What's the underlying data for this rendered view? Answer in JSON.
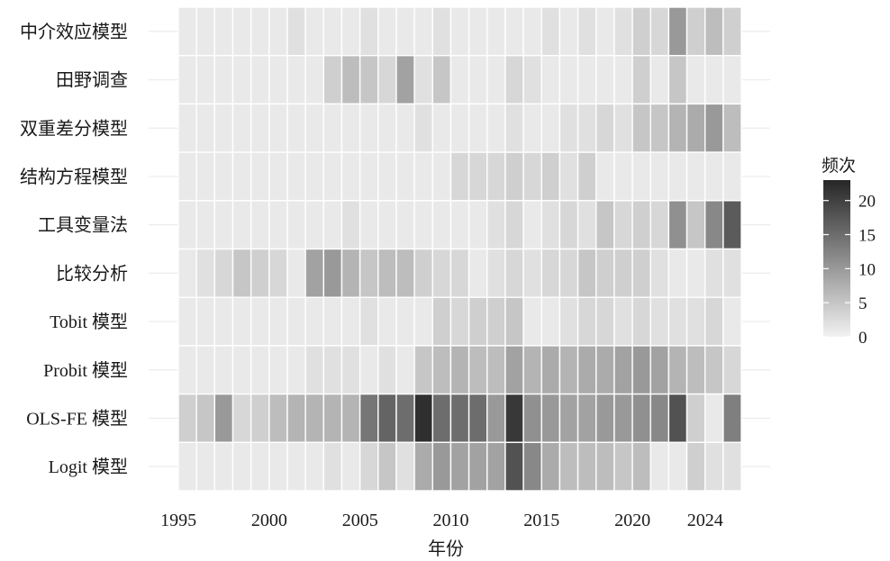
{
  "chart_data": {
    "type": "heatmap",
    "title": "",
    "xlabel": "年份",
    "ylabel": "",
    "legend_title": "频次",
    "legend_position": "right",
    "legend_ticks": [
      0,
      5,
      10,
      15,
      20
    ],
    "value_range": [
      0,
      23
    ],
    "color_low": "#f2f2f2",
    "color_high": "#262626",
    "x": [
      1995,
      1996,
      1997,
      1998,
      1999,
      2000,
      2001,
      2002,
      2003,
      2004,
      2005,
      2006,
      2007,
      2008,
      2009,
      2010,
      2011,
      2012,
      2013,
      2014,
      2015,
      2016,
      2017,
      2018,
      2019,
      2020,
      2021,
      2022,
      2023,
      2024,
      2025
    ],
    "x_tick_labels": [
      "1995",
      "2000",
      "2005",
      "2010",
      "2015",
      "2020",
      "2024"
    ],
    "x_tick_values": [
      1995,
      2000,
      2005,
      2010,
      2015,
      2020,
      2024
    ],
    "grid": true,
    "series": [
      {
        "name": "中介效应模型",
        "values": [
          1,
          1,
          1,
          1,
          1,
          1,
          2,
          1,
          1,
          1,
          2,
          1,
          1,
          1,
          2,
          1,
          1,
          1,
          1,
          1,
          2,
          1,
          2,
          1,
          2,
          4,
          3,
          10,
          4,
          6,
          4
        ]
      },
      {
        "name": "田野调查",
        "values": [
          1,
          1,
          1,
          1,
          1,
          1,
          1,
          1,
          4,
          6,
          5,
          3,
          9,
          2,
          5,
          1,
          1,
          1,
          3,
          2,
          1,
          1,
          1,
          1,
          1,
          4,
          1,
          5,
          1,
          1,
          1
        ]
      },
      {
        "name": "双重差分模型",
        "values": [
          1,
          1,
          1,
          1,
          1,
          1,
          1,
          1,
          1,
          1,
          1,
          1,
          1,
          2,
          1,
          1,
          1,
          1,
          2,
          1,
          1,
          2,
          2,
          3,
          2,
          5,
          5,
          7,
          8,
          10,
          6
        ]
      },
      {
        "name": "结构方程模型",
        "values": [
          1,
          1,
          1,
          1,
          1,
          1,
          1,
          1,
          1,
          1,
          1,
          1,
          1,
          1,
          1,
          3,
          3,
          3,
          4,
          3,
          4,
          2,
          4,
          1,
          1,
          1,
          1,
          1,
          1,
          1,
          1
        ]
      },
      {
        "name": "工具变量法",
        "values": [
          1,
          1,
          1,
          1,
          1,
          1,
          1,
          1,
          1,
          2,
          1,
          1,
          1,
          1,
          1,
          1,
          1,
          2,
          3,
          1,
          2,
          3,
          2,
          5,
          3,
          4,
          3,
          11,
          5,
          12,
          17
        ]
      },
      {
        "name": "比较分析",
        "values": [
          1,
          2,
          3,
          5,
          4,
          3,
          1,
          9,
          10,
          7,
          5,
          6,
          6,
          4,
          3,
          3,
          1,
          2,
          3,
          2,
          3,
          3,
          5,
          4,
          4,
          4,
          2,
          1,
          1,
          2,
          2
        ]
      },
      {
        "name": "Tobit 模型",
        "values": [
          1,
          1,
          1,
          1,
          1,
          1,
          1,
          1,
          1,
          1,
          2,
          1,
          1,
          1,
          4,
          3,
          4,
          4,
          5,
          1,
          1,
          2,
          3,
          3,
          2,
          3,
          2,
          2,
          2,
          3,
          1
        ]
      },
      {
        "name": "Probit 模型",
        "values": [
          1,
          1,
          1,
          1,
          1,
          1,
          1,
          2,
          2,
          2,
          1,
          2,
          1,
          5,
          6,
          7,
          6,
          6,
          9,
          7,
          8,
          7,
          8,
          8,
          9,
          10,
          9,
          7,
          6,
          5,
          3
        ]
      },
      {
        "name": "OLS-FE 模型",
        "values": [
          4,
          5,
          10,
          3,
          4,
          6,
          7,
          7,
          7,
          7,
          14,
          16,
          15,
          22,
          15,
          15,
          15,
          10,
          21,
          11,
          10,
          9,
          9,
          10,
          10,
          11,
          12,
          18,
          4,
          1,
          13
        ]
      },
      {
        "name": "Logit 模型",
        "values": [
          1,
          1,
          1,
          1,
          1,
          1,
          1,
          1,
          2,
          1,
          3,
          5,
          2,
          8,
          10,
          9,
          9,
          9,
          18,
          12,
          8,
          6,
          6,
          6,
          5,
          6,
          1,
          1,
          4,
          2,
          2
        ]
      }
    ]
  }
}
